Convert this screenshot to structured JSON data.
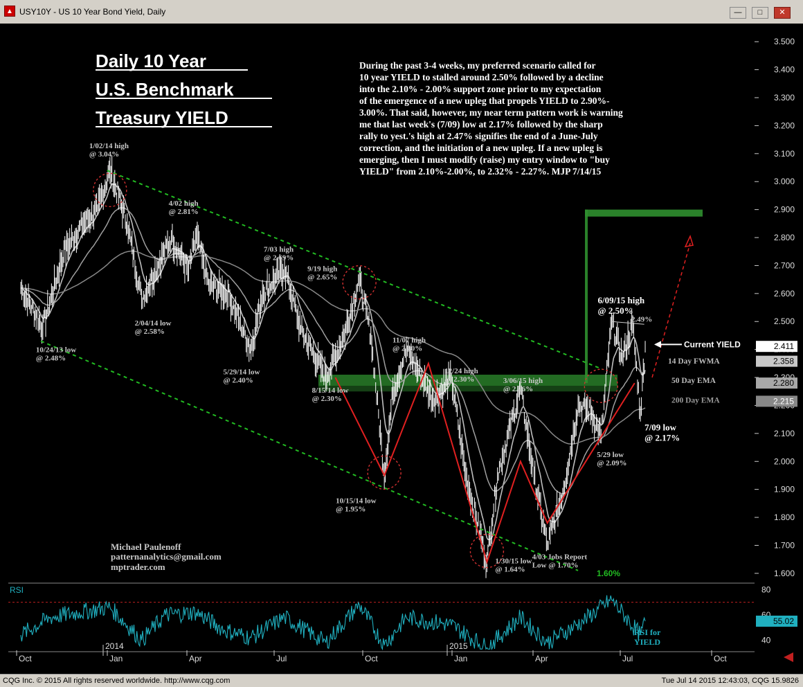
{
  "window": {
    "title": "USY10Y - US 10 Year Bond Yield, Daily",
    "minimize_label": "—",
    "maximize_label": "□",
    "close_label": "✕"
  },
  "status": {
    "left": "CQG Inc. © 2015 All rights reserved worldwide. http://www.cqg.com",
    "right": "Tue Jul 14 2015 12:43:03, CQG 15.9826"
  },
  "colors": {
    "background": "#000000",
    "price": "#ffffff",
    "fwma": "#bfbfbf",
    "ema50": "#a0a0a0",
    "ema200": "#888888",
    "channel": "#22bb22",
    "wave": "#e02020",
    "rsi": "#20b0c0",
    "zone": "#2f8f2f"
  },
  "chart_data": [
    {
      "type": "line",
      "title_lines": [
        "Daily 10 Year",
        "U.S. Benchmark",
        "Treasury YIELD"
      ],
      "commentary": [
        "During the past 3-4 weeks, my preferred scenario called for",
        "10 year YIELD to stalled around 2.50% followed by a decline",
        "into the 2.10% - 2.00% support zone prior to my expectation",
        "of the emergence of a new upleg that propels YIELD to 2.90%-",
        "3.00%. That said, however, my near term pattern work is warning",
        "me that last week's (7/09) low at 2.17% followed by the sharp",
        "rally to yest.'s high at 2.47% signifies the end of a June-July",
        "correction, and the initiation of a new upleg. If a new upleg is",
        "emerging, then I must modify (raise) my entry window to \"buy",
        "YIELD\" from 2.10%-2.00%, to 2.32% - 2.27%. MJP 7/14/15"
      ],
      "author": [
        "Michael Paulenoff",
        "patternanalytics@gmail.com",
        "mptrader.com"
      ],
      "x_labels": [
        "Oct",
        "2014",
        "Jan",
        "Apr",
        "Jul",
        "Oct",
        "2015",
        "Jan",
        "Apr",
        "Jul",
        "Oct"
      ],
      "y_ticks": [
        "3.500",
        "3.400",
        "3.300",
        "3.200",
        "3.100",
        "3.000",
        "2.900",
        "2.800",
        "2.700",
        "2.600",
        "2.500",
        "2.400",
        "2.300",
        "2.200",
        "2.100",
        "2.000",
        "1.900",
        "1.800",
        "1.700",
        "1.600"
      ],
      "ylim": [
        1.57,
        3.55
      ],
      "series": [
        {
          "name": "USY10Y",
          "x": [
            "2013-10-01",
            "2013-10-24",
            "2013-11-15",
            "2013-12-05",
            "2013-12-20",
            "2014-01-02",
            "2014-01-20",
            "2014-02-04",
            "2014-03-07",
            "2014-03-25",
            "2014-04-02",
            "2014-04-15",
            "2014-05-05",
            "2014-05-29",
            "2014-06-10",
            "2014-07-03",
            "2014-07-20",
            "2014-08-15",
            "2014-09-03",
            "2014-09-19",
            "2014-10-01",
            "2014-10-15",
            "2014-10-24",
            "2014-11-07",
            "2014-11-20",
            "2014-12-05",
            "2014-12-24",
            "2015-01-08",
            "2015-01-30",
            "2015-02-10",
            "2015-03-06",
            "2015-03-20",
            "2015-04-03",
            "2015-04-20",
            "2015-05-05",
            "2015-05-18",
            "2015-05-29",
            "2015-06-09",
            "2015-06-20",
            "2015-07-01",
            "2015-07-09",
            "2015-07-14"
          ],
          "values": [
            2.62,
            2.48,
            2.75,
            2.85,
            2.9,
            3.04,
            2.85,
            2.58,
            2.8,
            2.68,
            2.81,
            2.63,
            2.6,
            2.4,
            2.6,
            2.69,
            2.47,
            2.3,
            2.45,
            2.65,
            2.45,
            1.95,
            2.25,
            2.4,
            2.32,
            2.22,
            2.3,
            1.95,
            1.64,
            1.95,
            2.26,
            1.95,
            1.7,
            1.9,
            2.2,
            2.18,
            2.09,
            2.5,
            2.37,
            2.49,
            2.17,
            2.41
          ]
        }
      ],
      "overlay_labels": {
        "fwma": "14 Day FWMA",
        "ema50": "50 Day EMA",
        "ema200": "200 Day EMA",
        "current": "Current YIELD"
      },
      "current_values": {
        "price": "2.411",
        "fwma": "2.358",
        "ema50": "2.280",
        "ema200": "2.215"
      },
      "channel_bottom_label": "1.60%",
      "annotations": [
        {
          "text": [
            "1/02/14 high",
            "@ 3.04%"
          ],
          "date": "2014-01-02",
          "y": 3.04
        },
        {
          "text": [
            "10/24/13 low",
            "@ 2.48%"
          ],
          "date": "2013-10-24",
          "y": 2.48
        },
        {
          "text": [
            "2/04/14 low",
            "@ 2.58%"
          ],
          "date": "2014-02-04",
          "y": 2.58
        },
        {
          "text": [
            "4/02 high",
            "@ 2.81%"
          ],
          "date": "2014-04-02",
          "y": 2.81
        },
        {
          "text": [
            "5/29/14 low",
            "@ 2.40%"
          ],
          "date": "2014-05-29",
          "y": 2.4
        },
        {
          "text": [
            "7/03 high",
            "@ 2.69%"
          ],
          "date": "2014-07-03",
          "y": 2.69
        },
        {
          "text": [
            "8/15/14 low",
            "@ 2.30%"
          ],
          "date": "2014-08-15",
          "y": 2.3
        },
        {
          "text": [
            "9/19 high",
            "@ 2.65%"
          ],
          "date": "2014-09-19",
          "y": 2.65
        },
        {
          "text": [
            "10/15/14 low",
            "@ 1.95%"
          ],
          "date": "2014-10-15",
          "y": 1.95
        },
        {
          "text": [
            "11/07 high",
            "@ 2.40%"
          ],
          "date": "2014-11-07",
          "y": 2.4
        },
        {
          "text": [
            "12/24 high",
            "@ 2.30%"
          ],
          "date": "2014-12-24",
          "y": 2.3
        },
        {
          "text": [
            "1/30/15 low",
            "@ 1.64%"
          ],
          "date": "2015-01-30",
          "y": 1.64
        },
        {
          "text": [
            "3/06/15 high",
            "@ 2.26%"
          ],
          "date": "2015-03-06",
          "y": 2.26
        },
        {
          "text": [
            "4/03 Jobs Report",
            "Low @ 1.70%"
          ],
          "date": "2015-04-03",
          "y": 1.7
        },
        {
          "text": [
            "5/29 low",
            "@ 2.09%"
          ],
          "date": "2015-05-29",
          "y": 2.09
        },
        {
          "text": [
            "6/09/15 high",
            "@ 2.50%"
          ],
          "date": "2015-06-09",
          "y": 2.5
        },
        {
          "text": [
            "2.49%"
          ],
          "date": "2015-07-01",
          "y": 2.49
        },
        {
          "text": [
            "7/09 low",
            "@ 2.17%"
          ],
          "date": "2015-07-09",
          "y": 2.17
        }
      ]
    },
    {
      "type": "line",
      "title": "RSI",
      "y_ticks": [
        "80",
        "60",
        "40"
      ],
      "ylim": [
        32,
        84
      ],
      "reference_line": 70,
      "current_value": "55.02",
      "label_lines": [
        "RSI for",
        "YIELD"
      ],
      "series": [
        {
          "name": "RSI",
          "x": [
            "2013-10-01",
            "2013-11-01",
            "2013-12-01",
            "2014-01-02",
            "2014-02-04",
            "2014-03-01",
            "2014-04-02",
            "2014-05-01",
            "2014-05-29",
            "2014-07-03",
            "2014-08-15",
            "2014-09-19",
            "2014-10-15",
            "2014-11-07",
            "2014-12-24",
            "2015-01-30",
            "2015-03-06",
            "2015-04-03",
            "2015-05-10",
            "2015-06-09",
            "2015-07-09",
            "2015-07-14"
          ],
          "values": [
            44,
            58,
            62,
            66,
            40,
            60,
            62,
            48,
            42,
            58,
            38,
            68,
            36,
            58,
            52,
            34,
            58,
            38,
            55,
            72,
            44,
            55
          ]
        }
      ]
    }
  ]
}
